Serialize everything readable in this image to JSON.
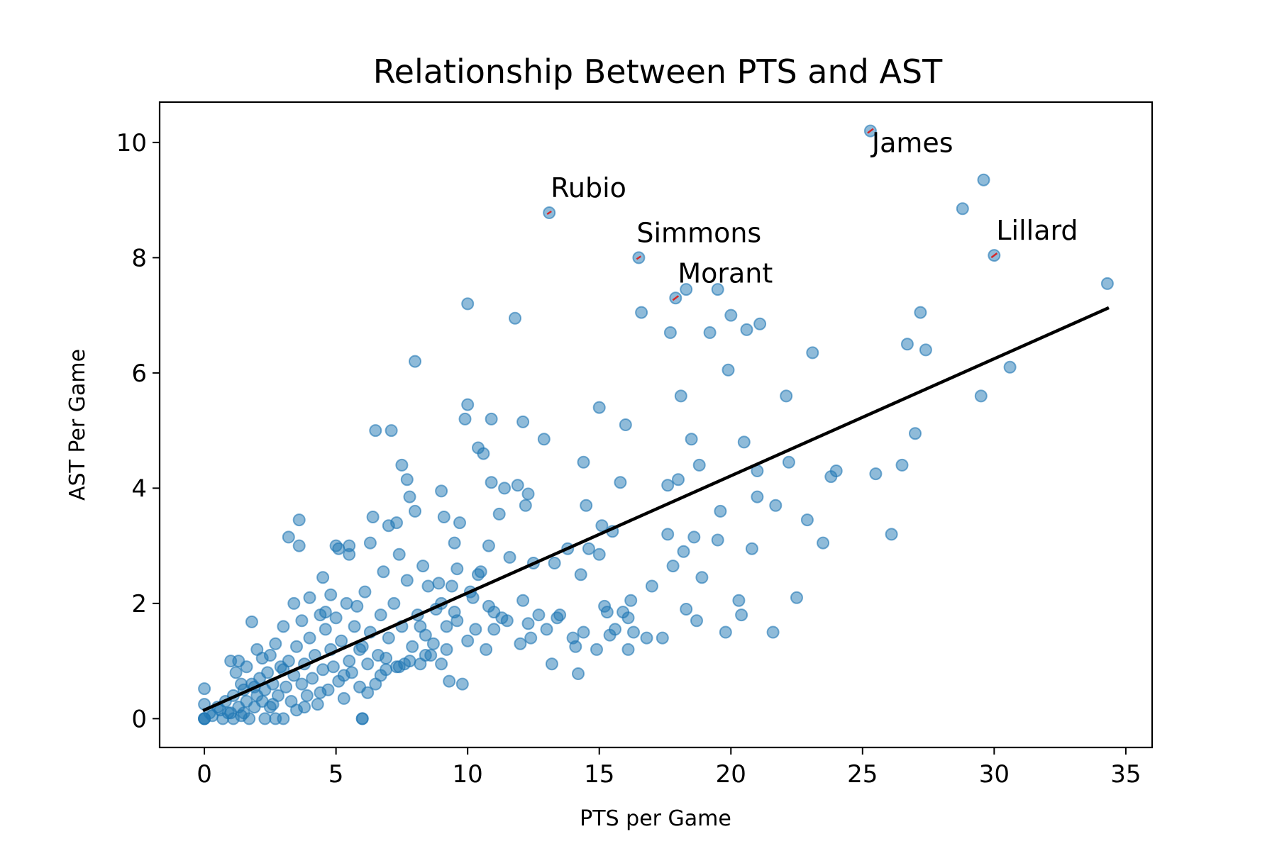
{
  "chart_data": {
    "type": "scatter",
    "title": "Relationship Between PTS and AST",
    "xlabel": "PTS per Game",
    "ylabel": "AST Per Game",
    "xlim": [
      -1.7,
      36.0
    ],
    "ylim": [
      -0.5,
      10.7
    ],
    "xticks": [
      0,
      5,
      10,
      15,
      20,
      25,
      30,
      35
    ],
    "yticks": [
      0,
      2,
      4,
      6,
      8,
      10
    ],
    "grid": false,
    "legend": "none",
    "point_color": "#1f77b4",
    "line_color": "#000000",
    "highlight_color": "#d62728",
    "fit_line": {
      "x": [
        0,
        34.3
      ],
      "y": [
        0.15,
        7.12
      ]
    },
    "annotations": [
      {
        "label": "James",
        "x": 25.3,
        "y": 10.2
      },
      {
        "label": "Rubio",
        "x": 13.1,
        "y": 8.78
      },
      {
        "label": "Simmons",
        "x": 16.5,
        "y": 8.0
      },
      {
        "label": "Morant",
        "x": 17.9,
        "y": 7.3
      },
      {
        "label": "Lillard",
        "x": 30.0,
        "y": 8.04
      }
    ],
    "points": [
      [
        0,
        0
      ],
      [
        0,
        0
      ],
      [
        0,
        0
      ],
      [
        0,
        0.25
      ],
      [
        0,
        0.52
      ],
      [
        0.2,
        0.1
      ],
      [
        0.3,
        0.05
      ],
      [
        0.5,
        0.2
      ],
      [
        0.6,
        0.15
      ],
      [
        0.7,
        0
      ],
      [
        0.8,
        0.3
      ],
      [
        0.9,
        0.1
      ],
      [
        1.0,
        1.0
      ],
      [
        1.1,
        0.4
      ],
      [
        1.1,
        0
      ],
      [
        1.2,
        0.8
      ],
      [
        1.3,
        0.2
      ],
      [
        1.3,
        1.0
      ],
      [
        1.4,
        0.6
      ],
      [
        1.5,
        0.1
      ],
      [
        1.5,
        0.5
      ],
      [
        1.6,
        0.3
      ],
      [
        1.6,
        0.9
      ],
      [
        1.7,
        0
      ],
      [
        1.8,
        0.6
      ],
      [
        1.8,
        1.68
      ],
      [
        1.9,
        0.2
      ],
      [
        2.0,
        1.2
      ],
      [
        2.0,
        0.4
      ],
      [
        2.1,
        0.7
      ],
      [
        2.2,
        1.05
      ],
      [
        2.2,
        0.3
      ],
      [
        2.3,
        0.5
      ],
      [
        2.4,
        0.8
      ],
      [
        2.5,
        0.2
      ],
      [
        2.5,
        1.1
      ],
      [
        2.6,
        0.6
      ],
      [
        2.7,
        0
      ],
      [
        2.7,
        1.3
      ],
      [
        2.8,
        0.4
      ],
      [
        2.9,
        0.9
      ],
      [
        3.0,
        0
      ],
      [
        3.0,
        1.6
      ],
      [
        3.1,
        0.55
      ],
      [
        3.2,
        1.0
      ],
      [
        3.2,
        3.15
      ],
      [
        3.3,
        0.3
      ],
      [
        3.4,
        0.75
      ],
      [
        3.4,
        2.0
      ],
      [
        3.5,
        1.25
      ],
      [
        3.5,
        0.15
      ],
      [
        3.6,
        3.45
      ],
      [
        3.6,
        3.0
      ],
      [
        3.7,
        0.6
      ],
      [
        3.7,
        1.7
      ],
      [
        3.8,
        0.95
      ],
      [
        3.9,
        0.4
      ],
      [
        4.0,
        1.4
      ],
      [
        4.0,
        2.1
      ],
      [
        4.1,
        0.7
      ],
      [
        4.2,
        1.1
      ],
      [
        4.3,
        0.25
      ],
      [
        4.4,
        1.8
      ],
      [
        4.5,
        0.85
      ],
      [
        4.5,
        2.45
      ],
      [
        4.6,
        1.55
      ],
      [
        4.7,
        0.5
      ],
      [
        4.8,
        1.2
      ],
      [
        4.8,
        2.15
      ],
      [
        4.9,
        0.9
      ],
      [
        5.0,
        3.0
      ],
      [
        5.0,
        1.75
      ],
      [
        5.1,
        0.65
      ],
      [
        5.1,
        2.95
      ],
      [
        5.2,
        1.35
      ],
      [
        5.3,
        0.35
      ],
      [
        5.4,
        2.0
      ],
      [
        5.5,
        1.0
      ],
      [
        5.5,
        2.85
      ],
      [
        5.6,
        0.8
      ],
      [
        5.7,
        1.6
      ],
      [
        5.8,
        1.95
      ],
      [
        5.9,
        0.55
      ],
      [
        6.0,
        0
      ],
      [
        6.0,
        0
      ],
      [
        6.0,
        1.25
      ],
      [
        6.1,
        2.2
      ],
      [
        6.2,
        0.95
      ],
      [
        6.3,
        3.05
      ],
      [
        6.3,
        1.5
      ],
      [
        6.4,
        3.5
      ],
      [
        6.5,
        0.6
      ],
      [
        6.5,
        5.0
      ],
      [
        6.6,
        1.1
      ],
      [
        6.7,
        1.8
      ],
      [
        6.8,
        2.55
      ],
      [
        6.9,
        0.85
      ],
      [
        7.0,
        3.35
      ],
      [
        7.0,
        1.4
      ],
      [
        7.1,
        5.0
      ],
      [
        7.2,
        2.0
      ],
      [
        7.3,
        0.9
      ],
      [
        7.3,
        3.4
      ],
      [
        7.4,
        2.85
      ],
      [
        7.5,
        1.6
      ],
      [
        7.5,
        4.4
      ],
      [
        7.6,
        0.95
      ],
      [
        7.7,
        2.4
      ],
      [
        7.7,
        4.15
      ],
      [
        7.8,
        3.85
      ],
      [
        7.9,
        1.25
      ],
      [
        8.0,
        6.2
      ],
      [
        8.0,
        3.6
      ],
      [
        8.1,
        1.8
      ],
      [
        8.2,
        0.95
      ],
      [
        8.3,
        2.65
      ],
      [
        8.4,
        1.45
      ],
      [
        8.5,
        2.3
      ],
      [
        8.6,
        1.1
      ],
      [
        8.8,
        1.9
      ],
      [
        8.9,
        2.35
      ],
      [
        9.0,
        3.95
      ],
      [
        9.0,
        0.95
      ],
      [
        9.1,
        3.5
      ],
      [
        9.2,
        1.6
      ],
      [
        9.3,
        0.65
      ],
      [
        9.4,
        2.3
      ],
      [
        9.5,
        3.05
      ],
      [
        9.5,
        1.85
      ],
      [
        9.6,
        2.6
      ],
      [
        9.7,
        3.4
      ],
      [
        9.8,
        0.6
      ],
      [
        9.9,
        5.2
      ],
      [
        10.0,
        7.2
      ],
      [
        10.0,
        5.45
      ],
      [
        10.0,
        1.35
      ],
      [
        10.2,
        2.1
      ],
      [
        10.3,
        1.55
      ],
      [
        10.4,
        4.7
      ],
      [
        10.5,
        2.55
      ],
      [
        10.6,
        4.6
      ],
      [
        10.7,
        1.2
      ],
      [
        10.8,
        3.0
      ],
      [
        10.9,
        4.1
      ],
      [
        10.9,
        5.2
      ],
      [
        11.0,
        1.55
      ],
      [
        11.2,
        3.55
      ],
      [
        11.3,
        1.75
      ],
      [
        11.4,
        4.0
      ],
      [
        11.6,
        2.8
      ],
      [
        11.8,
        6.95
      ],
      [
        11.9,
        4.05
      ],
      [
        12.0,
        1.3
      ],
      [
        12.1,
        5.15
      ],
      [
        12.2,
        3.7
      ],
      [
        12.3,
        1.65
      ],
      [
        12.3,
        3.9
      ],
      [
        12.5,
        2.7
      ],
      [
        12.7,
        1.8
      ],
      [
        12.9,
        4.85
      ],
      [
        13.1,
        8.78
      ],
      [
        13.2,
        0.95
      ],
      [
        13.3,
        2.7
      ],
      [
        13.5,
        1.8
      ],
      [
        13.8,
        2.95
      ],
      [
        14.1,
        1.25
      ],
      [
        14.2,
        0.78
      ],
      [
        14.4,
        1.5
      ],
      [
        14.4,
        4.45
      ],
      [
        14.5,
        3.7
      ],
      [
        14.6,
        2.95
      ],
      [
        14.9,
        1.2
      ],
      [
        15.0,
        5.4
      ],
      [
        15.0,
        2.85
      ],
      [
        15.1,
        3.35
      ],
      [
        15.2,
        1.95
      ],
      [
        15.4,
        1.45
      ],
      [
        15.5,
        3.25
      ],
      [
        15.8,
        4.1
      ],
      [
        15.9,
        1.85
      ],
      [
        16.0,
        5.1
      ],
      [
        16.1,
        1.75
      ],
      [
        16.2,
        2.05
      ],
      [
        16.5,
        8.0
      ],
      [
        16.6,
        7.05
      ],
      [
        16.8,
        1.4
      ],
      [
        17.4,
        1.4
      ],
      [
        17.6,
        4.05
      ],
      [
        17.7,
        6.7
      ],
      [
        17.8,
        2.65
      ],
      [
        17.9,
        7.3
      ],
      [
        18.0,
        4.15
      ],
      [
        18.1,
        5.6
      ],
      [
        18.3,
        7.45
      ],
      [
        18.3,
        1.9
      ],
      [
        18.5,
        4.85
      ],
      [
        18.6,
        3.15
      ],
      [
        18.7,
        1.7
      ],
      [
        18.8,
        4.4
      ],
      [
        18.9,
        2.45
      ],
      [
        19.2,
        6.7
      ],
      [
        19.5,
        3.1
      ],
      [
        19.5,
        7.45
      ],
      [
        19.6,
        3.6
      ],
      [
        19.8,
        1.5
      ],
      [
        19.9,
        6.05
      ],
      [
        20.0,
        7.0
      ],
      [
        20.3,
        2.05
      ],
      [
        20.5,
        4.8
      ],
      [
        20.6,
        6.75
      ],
      [
        20.8,
        2.95
      ],
      [
        21.0,
        4.3
      ],
      [
        21.1,
        6.85
      ],
      [
        21.6,
        1.5
      ],
      [
        21.7,
        3.7
      ],
      [
        22.1,
        5.6
      ],
      [
        22.2,
        4.45
      ],
      [
        22.5,
        2.1
      ],
      [
        22.9,
        3.45
      ],
      [
        23.1,
        6.35
      ],
      [
        23.5,
        3.05
      ],
      [
        23.8,
        4.2
      ],
      [
        24.0,
        4.3
      ],
      [
        25.3,
        10.2
      ],
      [
        25.5,
        4.25
      ],
      [
        26.1,
        3.2
      ],
      [
        26.5,
        4.4
      ],
      [
        26.7,
        6.5
      ],
      [
        27.0,
        4.95
      ],
      [
        27.4,
        6.4
      ],
      [
        27.2,
        7.05
      ],
      [
        28.8,
        8.85
      ],
      [
        29.6,
        9.35
      ],
      [
        29.5,
        5.6
      ],
      [
        30.0,
        8.04
      ],
      [
        30.6,
        6.1
      ],
      [
        34.3,
        7.55
      ],
      [
        1.0,
        0.1
      ],
      [
        1.4,
        0.05
      ],
      [
        2.3,
        0.0
      ],
      [
        3.8,
        0.2
      ],
      [
        4.4,
        0.45
      ],
      [
        5.3,
        0.75
      ],
      [
        5.9,
        1.2
      ],
      [
        6.2,
        0.45
      ],
      [
        6.9,
        1.05
      ],
      [
        7.8,
        1.0
      ],
      [
        8.7,
        1.3
      ],
      [
        9.6,
        1.7
      ],
      [
        10.4,
        2.5
      ],
      [
        11.0,
        1.85
      ],
      [
        11.5,
        1.7
      ],
      [
        12.4,
        1.4
      ],
      [
        13.0,
        1.55
      ],
      [
        14.0,
        1.4
      ],
      [
        15.6,
        1.55
      ],
      [
        16.1,
        1.2
      ],
      [
        17.0,
        2.3
      ],
      [
        17.6,
        3.2
      ],
      [
        18.2,
        2.9
      ],
      [
        20.4,
        1.8
      ],
      [
        21.0,
        3.85
      ],
      [
        5.5,
        3.0
      ],
      [
        4.6,
        1.85
      ],
      [
        3.0,
        0.85
      ],
      [
        2.6,
        0.25
      ],
      [
        1.9,
        0.55
      ],
      [
        6.7,
        0.75
      ],
      [
        7.4,
        0.9
      ],
      [
        8.2,
        1.6
      ],
      [
        9.2,
        1.2
      ],
      [
        10.1,
        2.2
      ],
      [
        10.8,
        1.95
      ],
      [
        12.1,
        2.05
      ],
      [
        13.4,
        1.75
      ],
      [
        14.3,
        2.5
      ],
      [
        15.3,
        1.85
      ],
      [
        16.3,
        1.5
      ],
      [
        9.0,
        2.0
      ],
      [
        8.4,
        1.1
      ]
    ]
  }
}
